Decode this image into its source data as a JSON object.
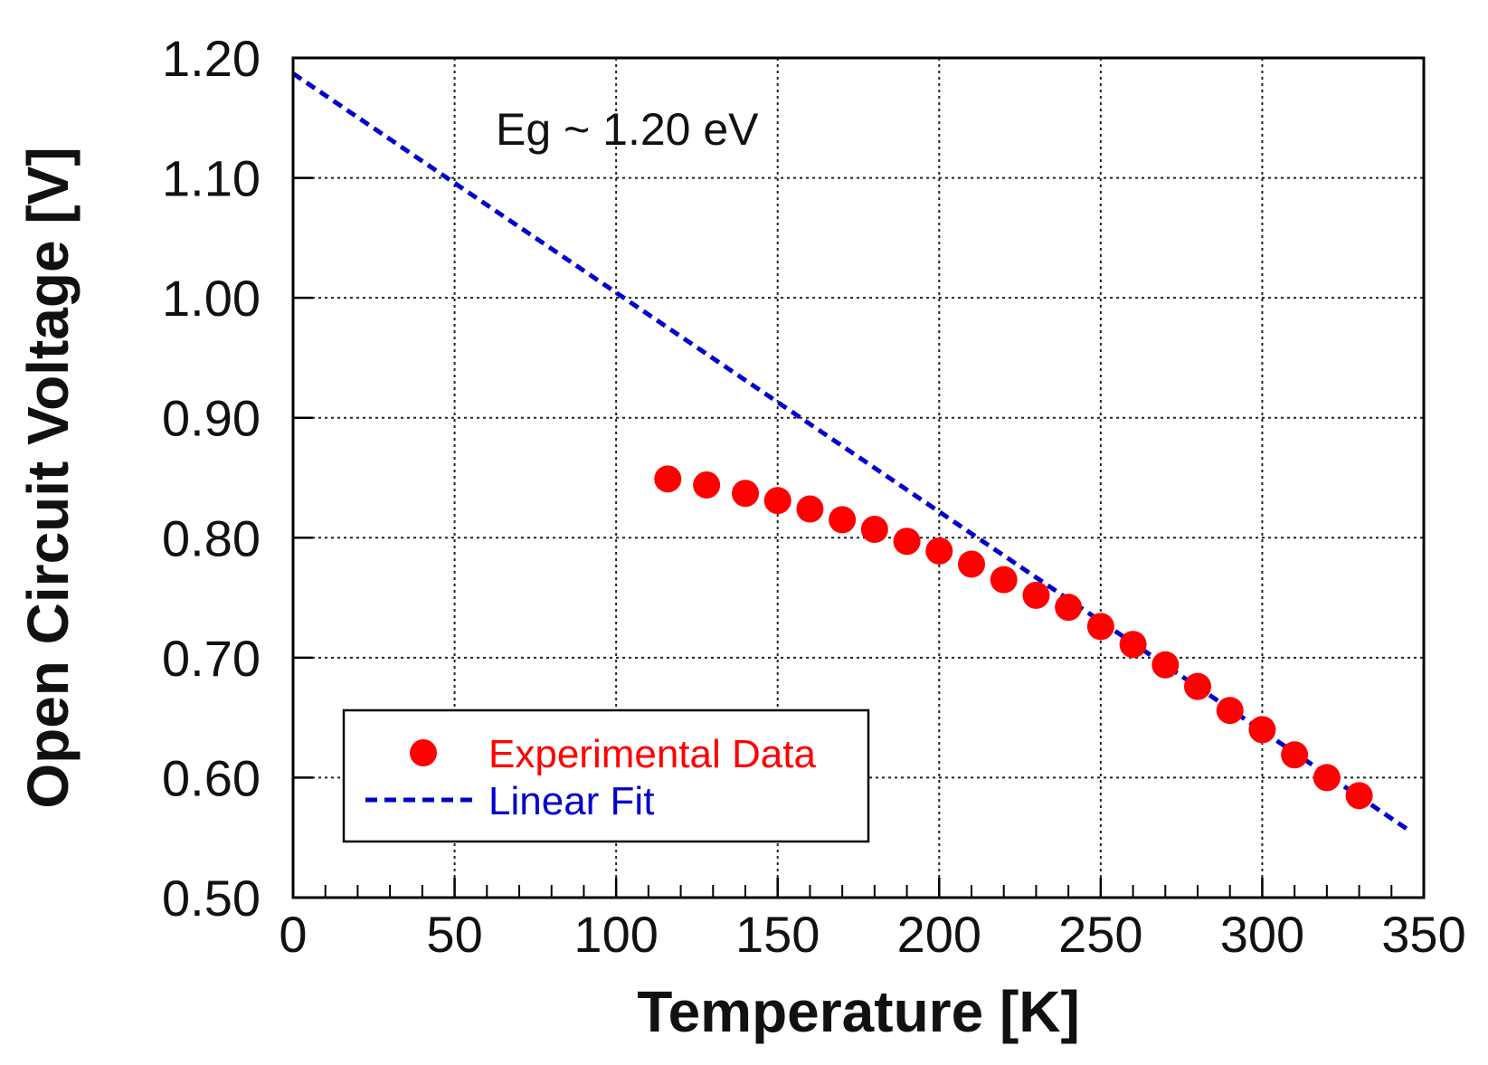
{
  "chart_data": {
    "type": "scatter",
    "title": "",
    "xlabel": "Temperature [K]",
    "ylabel": "Open Circuit Voltage [V]",
    "xlim": [
      0,
      350
    ],
    "ylim": [
      0.5,
      1.2
    ],
    "grid": true,
    "x_ticks": [
      0,
      50,
      100,
      150,
      200,
      250,
      300,
      350
    ],
    "y_ticks": [
      0.5,
      0.6,
      0.7,
      0.8,
      0.9,
      1.0,
      1.1,
      1.2
    ],
    "x_tick_labels": [
      "0",
      "50",
      "100",
      "150",
      "200",
      "250",
      "300",
      "350"
    ],
    "y_tick_labels": [
      "0.50",
      "0.60",
      "0.70",
      "0.80",
      "0.90",
      "1.00",
      "1.10",
      "1.20"
    ],
    "annotation": "Eg ~ 1.20 eV",
    "legend_position": "bottom-left",
    "series": [
      {
        "name": "Experimental Data",
        "kind": "scatter",
        "color": "#ff0000",
        "x": [
          116,
          128,
          140,
          150,
          160,
          170,
          180,
          190,
          200,
          210,
          220,
          230,
          240,
          250,
          260,
          270,
          280,
          290,
          300,
          310,
          320,
          330
        ],
        "y": [
          0.849,
          0.844,
          0.837,
          0.831,
          0.824,
          0.815,
          0.807,
          0.797,
          0.789,
          0.778,
          0.765,
          0.752,
          0.742,
          0.726,
          0.711,
          0.694,
          0.676,
          0.656,
          0.64,
          0.619,
          0.6,
          0.585
        ]
      },
      {
        "name": "Linear Fit",
        "kind": "line",
        "style": "dashed",
        "color": "#0000cc",
        "x": [
          0,
          346
        ],
        "y": [
          1.187,
          0.555
        ]
      }
    ]
  }
}
